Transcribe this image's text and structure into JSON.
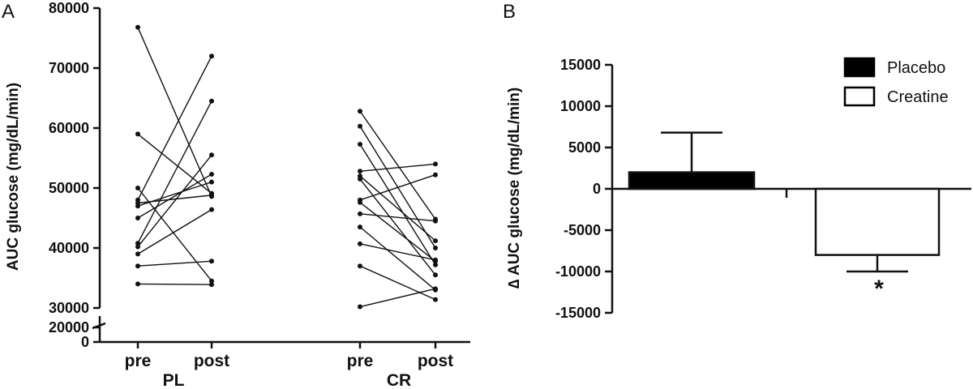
{
  "chart_data": [
    {
      "panel": "A",
      "type": "scatter",
      "subtype": "paired-lines",
      "ylabel": "AUC glucose (mg/dL/min)",
      "ylim": [
        30000,
        80000
      ],
      "yticks": [
        "80000",
        "70000",
        "60000",
        "50000",
        "40000",
        "30000"
      ],
      "broken_axis": {
        "ticks": [
          "20000",
          "0"
        ]
      },
      "groups": [
        {
          "name": "PL",
          "xlabels": [
            "pre",
            "post"
          ],
          "pairs": [
            [
              76800,
              48600
            ],
            [
              59000,
              49100
            ],
            [
              50000,
              34500
            ],
            [
              48000,
              72000
            ],
            [
              47500,
              48800
            ],
            [
              47000,
              51000
            ],
            [
              45000,
              52300
            ],
            [
              40800,
              64500
            ],
            [
              40200,
              55500
            ],
            [
              39000,
              46400
            ],
            [
              37000,
              37800
            ],
            [
              34000,
              33900
            ]
          ]
        },
        {
          "name": "CR",
          "xlabels": [
            "pre",
            "post"
          ],
          "pairs": [
            [
              62800,
              44800
            ],
            [
              60300,
              40000
            ],
            [
              57300,
              37200
            ],
            [
              52800,
              54000
            ],
            [
              52000,
              41200
            ],
            [
              51500,
              35500
            ],
            [
              48000,
              52200
            ],
            [
              47600,
              37800
            ],
            [
              45700,
              44500
            ],
            [
              43500,
              33000
            ],
            [
              40700,
              38000
            ],
            [
              37000,
              31400
            ],
            [
              30200,
              33200
            ]
          ]
        }
      ]
    },
    {
      "panel": "B",
      "type": "bar",
      "ylabel": "∆ AUC glucose (mg/dL/min)",
      "ylim": [
        -15000,
        15000
      ],
      "yticks": [
        "15000",
        "10000",
        "5000",
        "0",
        "-5000",
        "-10000",
        "-15000"
      ],
      "series": [
        {
          "name": "Placebo",
          "value": 2000,
          "error": 4800,
          "color": "#000000"
        },
        {
          "name": "Creatine",
          "value": -8000,
          "error": 2000,
          "color": "#ffffff"
        }
      ],
      "legend": [
        "Placebo",
        "Creatine"
      ],
      "annotation": "*"
    }
  ]
}
